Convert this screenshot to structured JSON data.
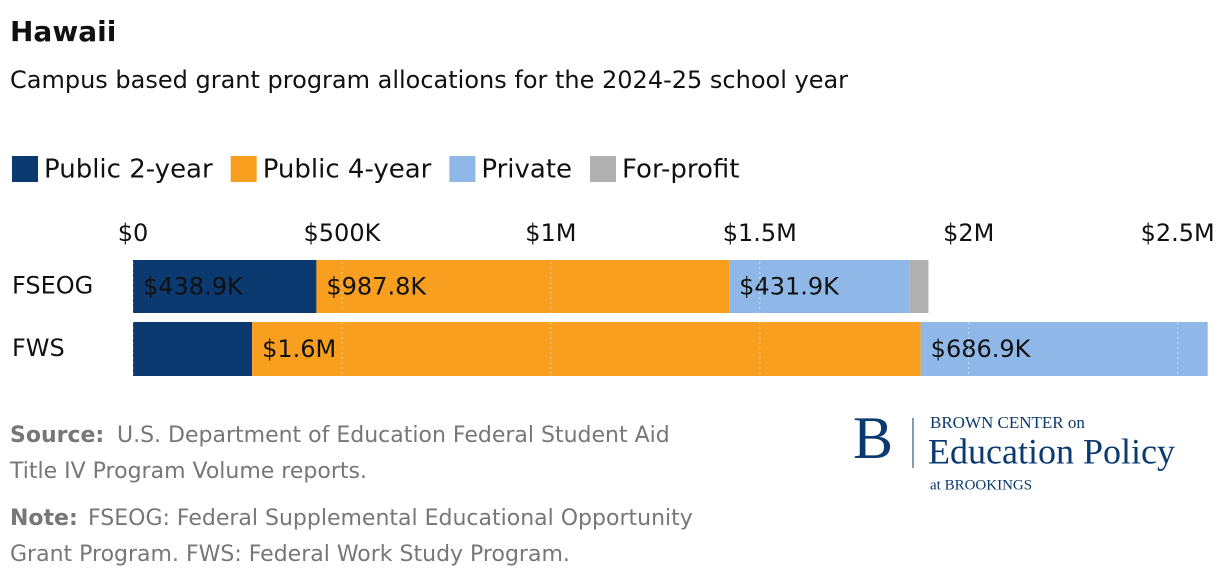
{
  "chart_data": {
    "type": "stacked-bar",
    "title": "Hawaii",
    "subtitle": "Campus based grant program allocations for the 2024-25 school year",
    "categories": [
      "FSEOG",
      "FWS"
    ],
    "series": [
      {
        "name": "Public 2-year",
        "color": "#0a3a70",
        "values": [
          438900,
          285000
        ],
        "value_labels": [
          "$438.9K",
          null
        ]
      },
      {
        "name": "Public 4-year",
        "color": "#f89f1f",
        "values": [
          987800,
          1600000
        ],
        "value_labels": [
          "$987.8K",
          "$1.6M"
        ]
      },
      {
        "name": "Private",
        "color": "#8fb8e8",
        "values": [
          431900,
          686900
        ],
        "value_labels": [
          "$431.9K",
          "$686.9K"
        ]
      },
      {
        "name": "For-profit",
        "color": "#b0b0b0",
        "values": [
          45000,
          0
        ],
        "value_labels": [
          null,
          null
        ]
      }
    ],
    "xlim": [
      0,
      2575000
    ],
    "xticks": [
      {
        "value": 0,
        "label": "$0"
      },
      {
        "value": 500000,
        "label": "$500K"
      },
      {
        "value": 1000000,
        "label": "$1M"
      },
      {
        "value": 1500000,
        "label": "$1.5M"
      },
      {
        "value": 2000000,
        "label": "$2M"
      },
      {
        "value": 2500000,
        "label": "$2.5M"
      }
    ],
    "grid": true
  },
  "footer": {
    "source_label": "Source:",
    "source": "U.S. Department of Education Federal Student Aid",
    "source_2": "Title IV Program Volume reports.",
    "note_label": "Note:",
    "note": "FSEOG: Federal Supplemental Educational Opportunity",
    "note_2": "Grant Program. FWS: Federal Work Study Program."
  },
  "logo": {
    "letter": "B",
    "line1": "BROWN CENTER on",
    "line2": "Education Policy",
    "line3": "at BROOKINGS"
  }
}
